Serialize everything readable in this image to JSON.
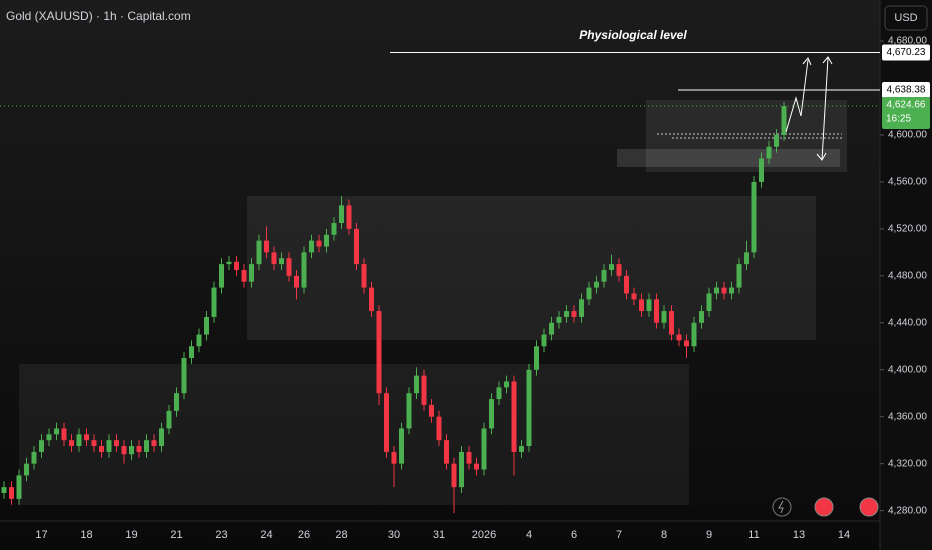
{
  "chart_data": {
    "type": "candlestick",
    "title": "Gold (XAUUSD) · 1h · Capital.com",
    "currency": "USD",
    "annotation": "Physiological level",
    "up_color": "#4caf50",
    "down_color": "#f23645",
    "categories": [
      null,
      null,
      null,
      null,
      null,
      "17",
      null,
      null,
      null,
      null,
      null,
      "18",
      null,
      null,
      null,
      null,
      null,
      "19",
      null,
      null,
      null,
      null,
      null,
      "21",
      null,
      null,
      null,
      null,
      null,
      "23",
      null,
      null,
      null,
      null,
      null,
      "24",
      null,
      null,
      null,
      null,
      "26",
      null,
      null,
      null,
      null,
      "28",
      null,
      null,
      null,
      null,
      null,
      null,
      "30",
      null,
      null,
      null,
      null,
      null,
      "31",
      null,
      null,
      null,
      null,
      null,
      "2026",
      null,
      null,
      null,
      null,
      null,
      "4",
      null,
      null,
      null,
      null,
      null,
      "6",
      null,
      null,
      null,
      null,
      null,
      "7",
      null,
      null,
      null,
      null,
      null,
      "8",
      null,
      null,
      null,
      null,
      null,
      "9",
      null,
      null,
      null,
      null,
      null,
      "11",
      null,
      null,
      null,
      null,
      null,
      "13",
      null,
      null,
      null,
      null,
      null,
      "14"
    ],
    "open": [
      4295,
      4300,
      4290,
      4310,
      4320,
      4330,
      4340,
      4345,
      4350,
      4340,
      4335,
      4345,
      4340,
      4335,
      4330,
      4340,
      4335,
      4328,
      4335,
      4330,
      4340,
      4335,
      4350,
      4365,
      4380,
      4410,
      4420,
      4430,
      4445,
      4470,
      4490,
      4492,
      4485,
      4475,
      4490,
      4510,
      4500,
      4490,
      4495,
      4480,
      4470,
      4500,
      4510,
      4505,
      4515,
      4525,
      4540,
      4520,
      4490,
      4470,
      4450,
      4380,
      4330,
      4320,
      4350,
      4380,
      4395,
      4370,
      4360,
      4340,
      4320,
      4300,
      4330,
      4320,
      4315,
      4350,
      4375,
      4385,
      4390,
      4330,
      4335,
      4400,
      4420,
      4430,
      4440,
      4445,
      4450,
      4445,
      4460,
      4470,
      4475,
      4485,
      4490,
      4480,
      4465,
      4460,
      4450,
      4460,
      4440,
      4450,
      4430,
      4425,
      4420,
      4440,
      4450,
      4465,
      4470,
      4465,
      4470,
      4490,
      4500,
      4560,
      4580,
      4590,
      4600,
      null,
      null,
      null,
      null,
      null,
      null,
      null,
      null
    ],
    "high": [
      4305,
      4305,
      4315,
      4325,
      4335,
      4345,
      4350,
      4355,
      4355,
      4345,
      4350,
      4350,
      4345,
      4340,
      4345,
      4345,
      4340,
      4340,
      4340,
      4345,
      4345,
      4355,
      4370,
      4385,
      4415,
      4425,
      4435,
      4450,
      4475,
      4495,
      4497,
      4497,
      4490,
      4495,
      4515,
      4522,
      4505,
      4500,
      4500,
      4485,
      4505,
      4515,
      4515,
      4520,
      4530,
      4548,
      4545,
      4525,
      4495,
      4475,
      4455,
      4385,
      4335,
      4355,
      4385,
      4402,
      4400,
      4375,
      4365,
      4345,
      4325,
      4335,
      4335,
      4325,
      4355,
      4380,
      4390,
      4395,
      4395,
      4340,
      4405,
      4425,
      4435,
      4445,
      4450,
      4455,
      4455,
      4465,
      4475,
      4480,
      4490,
      4498,
      4495,
      4485,
      4470,
      4465,
      4465,
      4465,
      4455,
      4455,
      4435,
      4430,
      4445,
      4455,
      4470,
      4475,
      4475,
      4475,
      4495,
      4510,
      4565,
      4585,
      4595,
      4605,
      4628,
      null,
      null,
      null,
      null,
      null,
      null,
      null,
      null
    ],
    "low": [
      4290,
      4285,
      4285,
      4305,
      4315,
      4325,
      4335,
      4340,
      4335,
      4330,
      4330,
      4335,
      4330,
      4325,
      4325,
      4330,
      4320,
      4323,
      4325,
      4325,
      4330,
      4330,
      4345,
      4360,
      4375,
      4405,
      4415,
      4425,
      4440,
      4465,
      4485,
      4480,
      4470,
      4470,
      4485,
      4495,
      4485,
      4485,
      4475,
      4460,
      4465,
      4495,
      4500,
      4500,
      4510,
      4520,
      4515,
      4485,
      4465,
      4445,
      4370,
      4325,
      4300,
      4315,
      4345,
      4375,
      4365,
      4355,
      4335,
      4315,
      4278,
      4295,
      4315,
      4310,
      4310,
      4345,
      4370,
      4380,
      4310,
      4325,
      4330,
      4395,
      4415,
      4425,
      4435,
      4440,
      4440,
      4440,
      4455,
      4465,
      4470,
      4480,
      4475,
      4460,
      4455,
      4445,
      4445,
      4435,
      4435,
      4425,
      4420,
      4410,
      4415,
      4435,
      4445,
      4460,
      4460,
      4460,
      4465,
      4485,
      4495,
      4555,
      4575,
      4585,
      4595,
      null,
      null,
      null,
      null,
      null,
      null,
      null,
      null
    ],
    "close": [
      4300,
      4290,
      4310,
      4320,
      4330,
      4340,
      4345,
      4350,
      4340,
      4335,
      4345,
      4340,
      4335,
      4330,
      4340,
      4335,
      4328,
      4335,
      4330,
      4340,
      4335,
      4350,
      4365,
      4380,
      4410,
      4420,
      4430,
      4445,
      4470,
      4490,
      4492,
      4485,
      4475,
      4490,
      4510,
      4500,
      4490,
      4495,
      4480,
      4470,
      4500,
      4510,
      4505,
      4515,
      4525,
      4540,
      4520,
      4490,
      4470,
      4450,
      4380,
      4330,
      4320,
      4350,
      4380,
      4395,
      4370,
      4360,
      4340,
      4320,
      4300,
      4330,
      4320,
      4315,
      4350,
      4375,
      4385,
      4390,
      4330,
      4335,
      4400,
      4420,
      4430,
      4440,
      4445,
      4450,
      4445,
      4460,
      4470,
      4475,
      4485,
      4490,
      4480,
      4465,
      4460,
      4450,
      4460,
      4440,
      4450,
      4430,
      4425,
      4420,
      4440,
      4450,
      4465,
      4470,
      4465,
      4470,
      4490,
      4500,
      4560,
      4580,
      4590,
      4600,
      4624.66,
      null,
      null,
      null,
      null,
      null,
      null,
      null,
      null
    ],
    "ylim": [
      4272,
      4715
    ],
    "yticks": [
      {
        "value": 4280,
        "label": "4,280.00"
      },
      {
        "value": 4320,
        "label": "4,320.00"
      },
      {
        "value": 4360,
        "label": "4,360.00"
      },
      {
        "value": 4400,
        "label": "4,400.00"
      },
      {
        "value": 4440,
        "label": "4,440.00"
      },
      {
        "value": 4480,
        "label": "4,480.00"
      },
      {
        "value": 4520,
        "label": "4,520.00"
      },
      {
        "value": 4560,
        "label": "4,560.00"
      },
      {
        "value": 4600,
        "label": "4,600.00"
      },
      {
        "value": 4680,
        "label": "4,680.00"
      }
    ],
    "levels": [
      {
        "value": 4670.23,
        "label": "4,670.23"
      },
      {
        "value": 4638.38,
        "label": "4,638.38"
      }
    ],
    "last_price": {
      "value": 4624.66,
      "label": "4,624.66"
    },
    "countdown": "16:25"
  }
}
